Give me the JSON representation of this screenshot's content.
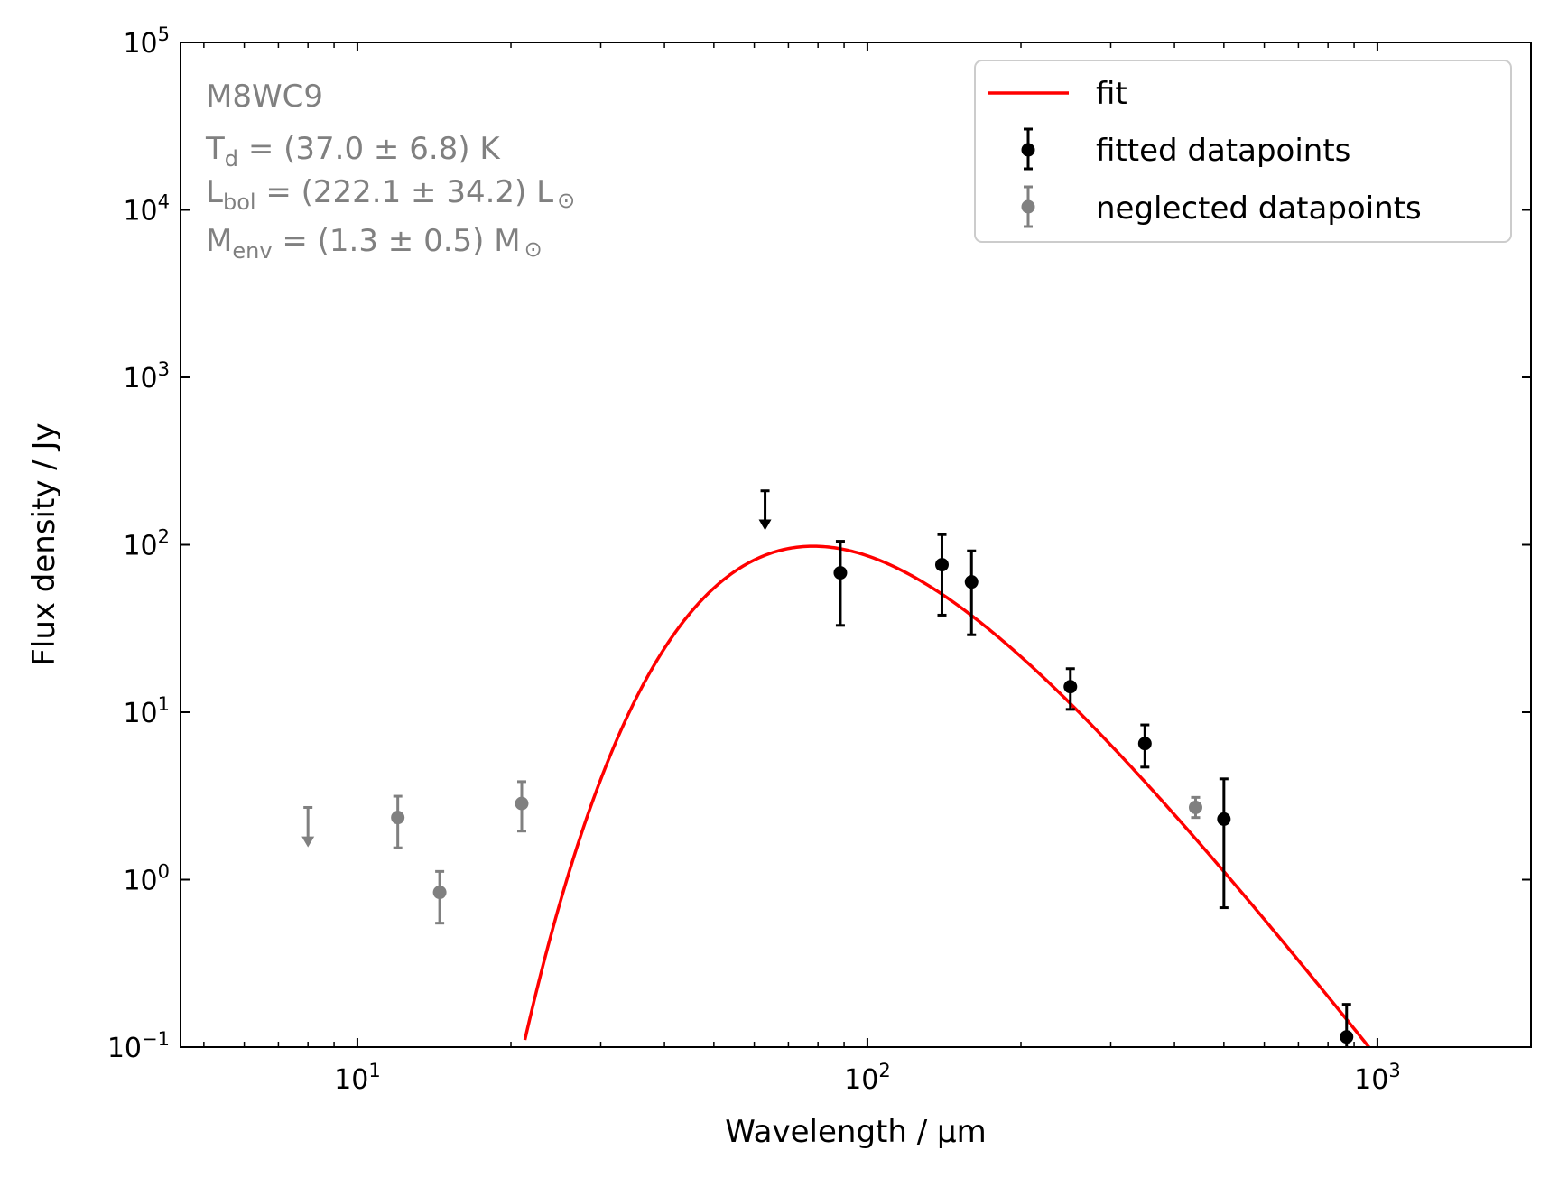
{
  "chart_data": {
    "type": "scatter",
    "scale": {
      "x": "log",
      "y": "log"
    },
    "xlabel": "Wavelength / μm",
    "ylabel": "Flux density / Jy",
    "xlim": [
      4.5,
      2000
    ],
    "ylim": [
      0.1,
      100000
    ],
    "x_ticks": [
      {
        "value": 10,
        "base": "10",
        "exp": "1"
      },
      {
        "value": 100,
        "base": "10",
        "exp": "2"
      },
      {
        "value": 1000,
        "base": "10",
        "exp": "3"
      }
    ],
    "y_ticks": [
      {
        "value": 0.1,
        "base": "10",
        "exp": "−1"
      },
      {
        "value": 1,
        "base": "10",
        "exp": "0"
      },
      {
        "value": 10,
        "base": "10",
        "exp": "1"
      },
      {
        "value": 100,
        "base": "10",
        "exp": "2"
      },
      {
        "value": 1000,
        "base": "10",
        "exp": "3"
      },
      {
        "value": 10000,
        "base": "10",
        "exp": "4"
      },
      {
        "value": 100000,
        "base": "10",
        "exp": "5"
      }
    ],
    "annotation": {
      "source": "M8WC9",
      "td": {
        "main": "T",
        "sub": "d",
        "rest": " = (37.0 ± 6.8) K"
      },
      "lbol": {
        "main": "L",
        "sub": "bol",
        "rest": " = (222.1 ± 34.2) L",
        "sym": "⊙"
      },
      "menv": {
        "main": "M",
        "sub": "env",
        "rest": " = (1.3 ± 0.5) M",
        "sym": "⊙"
      }
    },
    "legend": {
      "position": "upper right",
      "entries": [
        "fit",
        "fitted datapoints",
        "neglected datapoints"
      ]
    },
    "colors": {
      "fit": "#ff0000",
      "fitted": "#000000",
      "neglected": "#808080"
    },
    "fit": {
      "name": "fit",
      "peak_x": 81,
      "peak_y": 98,
      "temperature_K": 37.0,
      "x_range": [
        21.3,
        1150
      ]
    },
    "fitted_points": [
      {
        "x": 88.5,
        "y": 68,
        "ylo": 33,
        "yhi": 105
      },
      {
        "x": 140,
        "y": 76,
        "ylo": 38,
        "yhi": 115
      },
      {
        "x": 160,
        "y": 60,
        "ylo": 29,
        "yhi": 92
      },
      {
        "x": 250,
        "y": 14.2,
        "ylo": 10.4,
        "yhi": 18.2
      },
      {
        "x": 350,
        "y": 6.5,
        "ylo": 4.7,
        "yhi": 8.4
      },
      {
        "x": 500,
        "y": 2.3,
        "ylo": 0.68,
        "yhi": 4.0
      },
      {
        "x": 870,
        "y": 0.115,
        "ylo": 0.1,
        "yhi": 0.18
      }
    ],
    "fitted_upper_limits": [
      {
        "x": 63,
        "y": 210,
        "arrow_to": 125
      }
    ],
    "neglected_points": [
      {
        "x": 12,
        "y": 2.35,
        "ylo": 1.55,
        "yhi": 3.15
      },
      {
        "x": 14.5,
        "y": 0.84,
        "ylo": 0.55,
        "yhi": 1.12
      },
      {
        "x": 21,
        "y": 2.85,
        "ylo": 1.95,
        "yhi": 3.85
      },
      {
        "x": 440,
        "y": 2.7,
        "ylo": 2.35,
        "yhi": 3.1
      }
    ],
    "neglected_upper_limits": [
      {
        "x": 8,
        "y": 2.7,
        "arrow_to": 1.6
      }
    ]
  }
}
